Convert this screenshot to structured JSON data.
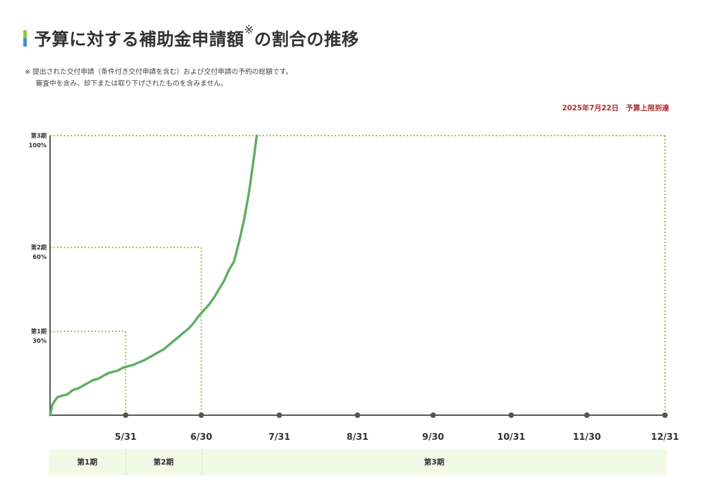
{
  "header": {
    "title_main": "予算に対する補助金申請額",
    "title_mark": "※",
    "title_tail": "の割合の推移"
  },
  "note": {
    "line1": "※ 提出された交付申請（条件付き交付申請を含む）および交付申請の予約の総額です。",
    "line2": "審査中を含み、却下または取り下げされたものを含みません。"
  },
  "budget_reached": "2025年7月22日　予算上限到達",
  "colors": {
    "line": "#5fae62",
    "threshold": "#8cc63f",
    "axis": "#555555",
    "alert": "#b03030",
    "band": "#f1fae6"
  },
  "periods": [
    {
      "label": "第1期"
    },
    {
      "label": "第2期"
    },
    {
      "label": "第3期"
    }
  ],
  "chart_data": {
    "type": "line",
    "x_unit": "date",
    "x_domain": [
      "2025-05-01",
      "2025-12-31"
    ],
    "ylim": [
      0,
      100
    ],
    "y_unit": "%",
    "x_ticks": [
      {
        "date": "2025-05-31",
        "label": "5/31"
      },
      {
        "date": "2025-06-30",
        "label": "6/30"
      },
      {
        "date": "2025-07-31",
        "label": "7/31"
      },
      {
        "date": "2025-08-31",
        "label": "8/31"
      },
      {
        "date": "2025-09-30",
        "label": "9/30"
      },
      {
        "date": "2025-10-31",
        "label": "10/31"
      },
      {
        "date": "2025-11-30",
        "label": "11/30"
      },
      {
        "date": "2025-12-31",
        "label": "12/31"
      }
    ],
    "thresholds": [
      {
        "period": "第1期",
        "value": 30,
        "label": "30%",
        "end_date": "2025-05-31"
      },
      {
        "period": "第2期",
        "value": 60,
        "label": "60%",
        "end_date": "2025-06-30"
      },
      {
        "period": "第3期",
        "value": 100,
        "label": "100%",
        "end_date": "2025-12-31"
      }
    ],
    "series": [
      {
        "values": [
          [
            "2025-05-01",
            0
          ],
          [
            "2025-05-02",
            4
          ],
          [
            "2025-05-04",
            6.5
          ],
          [
            "2025-05-06",
            7
          ],
          [
            "2025-05-08",
            7.5
          ],
          [
            "2025-05-10",
            9
          ],
          [
            "2025-05-12",
            9.5
          ],
          [
            "2025-05-14",
            10.5
          ],
          [
            "2025-05-16",
            11.5
          ],
          [
            "2025-05-18",
            12.5
          ],
          [
            "2025-05-20",
            13
          ],
          [
            "2025-05-22",
            14
          ],
          [
            "2025-05-24",
            15
          ],
          [
            "2025-05-26",
            15.5
          ],
          [
            "2025-05-28",
            16
          ],
          [
            "2025-05-30",
            17
          ],
          [
            "2025-06-01",
            17.5
          ],
          [
            "2025-06-03",
            18
          ],
          [
            "2025-06-05",
            18.8
          ],
          [
            "2025-06-07",
            19.5
          ],
          [
            "2025-06-09",
            20.5
          ],
          [
            "2025-06-11",
            21.5
          ],
          [
            "2025-06-13",
            22.5
          ],
          [
            "2025-06-15",
            23.5
          ],
          [
            "2025-06-17",
            25
          ],
          [
            "2025-06-19",
            26.5
          ],
          [
            "2025-06-21",
            28
          ],
          [
            "2025-06-23",
            29.5
          ],
          [
            "2025-06-25",
            31
          ],
          [
            "2025-06-27",
            33
          ],
          [
            "2025-06-29",
            35.5
          ],
          [
            "2025-07-01",
            37.5
          ],
          [
            "2025-07-03",
            39.5
          ],
          [
            "2025-07-05",
            42
          ],
          [
            "2025-07-07",
            45
          ],
          [
            "2025-07-09",
            48
          ],
          [
            "2025-07-11",
            52
          ],
          [
            "2025-07-13",
            55
          ],
          [
            "2025-07-15",
            62
          ],
          [
            "2025-07-17",
            70
          ],
          [
            "2025-07-19",
            80
          ],
          [
            "2025-07-21",
            93
          ],
          [
            "2025-07-22",
            100
          ]
        ]
      }
    ]
  }
}
